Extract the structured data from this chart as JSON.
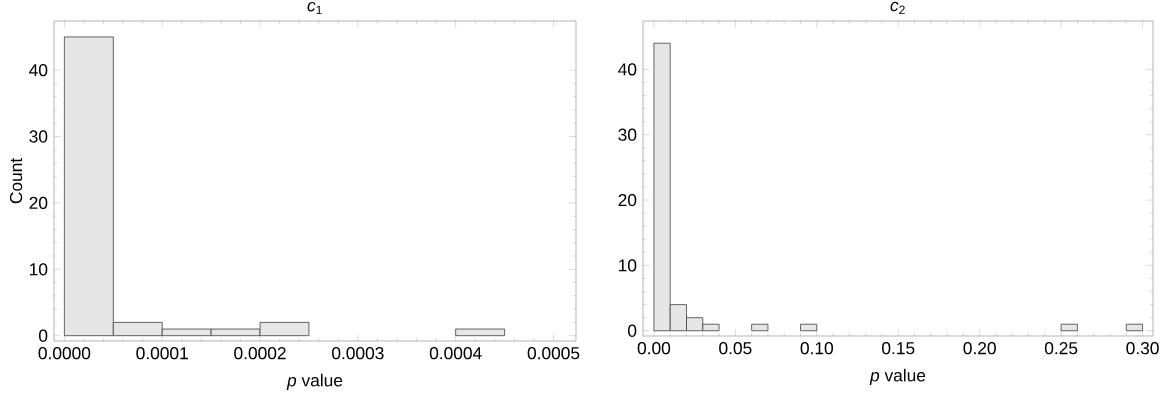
{
  "chart_data": [
    {
      "type": "histogram",
      "title": "*c*$_{1}$",
      "xlabel": "*p* value",
      "ylabel": "Count",
      "color": "#e6e6e6",
      "bins": [
        0,
        5e-05,
        0.0001,
        0.00015,
        0.0002,
        0.00025,
        0.0003,
        0.00035,
        0.0004,
        0.00045
      ],
      "values": [
        45,
        2,
        1,
        1,
        2,
        0,
        0,
        0,
        1
      ],
      "xlim": [
        -1.06e-05,
        0.000523
      ],
      "ylim": [
        -0.8,
        47.4
      ],
      "xticks": [
        {
          "value": 0,
          "label": "0.0000"
        },
        {
          "value": 0.0001,
          "label": "0.0001"
        },
        {
          "value": 0.0002,
          "label": "0.0002"
        },
        {
          "value": 0.0003,
          "label": "0.0003"
        },
        {
          "value": 0.0004,
          "label": "0.0004"
        },
        {
          "value": 0.0005,
          "label": "0.0005"
        }
      ],
      "yticks": [
        0,
        10,
        20,
        30,
        40
      ]
    },
    {
      "type": "histogram",
      "title": "*c*$_{2}$",
      "xlabel": "*p* value",
      "color": "#e6e6e6",
      "bins": [
        0,
        0.01,
        0.02,
        0.03,
        0.04,
        0.05,
        0.06,
        0.07,
        0.08,
        0.09,
        0.1,
        0.11,
        0.12,
        0.13,
        0.14,
        0.15,
        0.16,
        0.17,
        0.18,
        0.19,
        0.2,
        0.21,
        0.22,
        0.23,
        0.24,
        0.25,
        0.26,
        0.27,
        0.28,
        0.29,
        0.3
      ],
      "values": [
        44,
        4,
        2,
        1,
        0,
        0,
        1,
        0,
        0,
        1,
        0,
        0,
        0,
        0,
        0,
        0,
        0,
        0,
        0,
        0,
        0,
        0,
        0,
        0,
        0,
        1,
        0,
        0,
        0,
        1
      ],
      "xlim": [
        -0.0067,
        0.3064
      ],
      "ylim": [
        -0.8,
        47.4
      ],
      "xticks": [
        {
          "value": 0,
          "label": "0.00"
        },
        {
          "value": 0.05,
          "label": "0.05"
        },
        {
          "value": 0.1,
          "label": "0.10"
        },
        {
          "value": 0.15,
          "label": "0.15"
        },
        {
          "value": 0.2,
          "label": "0.20"
        },
        {
          "value": 0.25,
          "label": "0.25"
        },
        {
          "value": 0.3,
          "label": "0.30"
        }
      ],
      "yticks": [
        0,
        10,
        20,
        30,
        40
      ]
    }
  ]
}
